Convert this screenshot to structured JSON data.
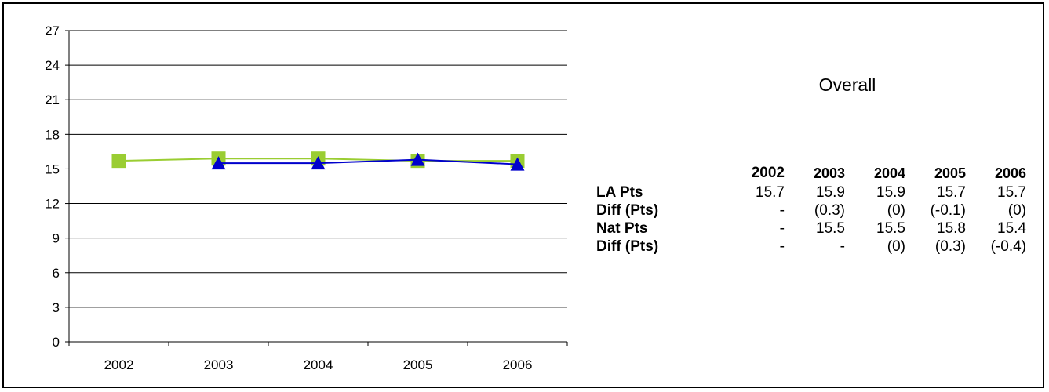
{
  "chart_data": {
    "type": "line",
    "categories": [
      "2002",
      "2003",
      "2004",
      "2005",
      "2006"
    ],
    "ylim": [
      0,
      27
    ],
    "yticks": [
      "0",
      "3",
      "6",
      "9",
      "12",
      "15",
      "18",
      "21",
      "24",
      "27"
    ],
    "grid": true,
    "series": [
      {
        "name": "LA Pts",
        "values": [
          15.7,
          15.9,
          15.9,
          15.7,
          15.7
        ],
        "color": "#9ACD32",
        "marker": "square"
      },
      {
        "name": "Nat Pts",
        "values": [
          null,
          15.5,
          15.5,
          15.8,
          15.4
        ],
        "color": "#0000CC",
        "marker": "triangle"
      }
    ]
  },
  "panel": {
    "title": "Overall",
    "columns": [
      "2002",
      "2003",
      "2004",
      "2005",
      "2006"
    ],
    "rows": [
      {
        "label": "LA Pts",
        "values": [
          "15.7",
          "15.9",
          "15.9",
          "15.7",
          "15.7"
        ]
      },
      {
        "label": "Diff (Pts)",
        "values": [
          "-",
          "(0.3)",
          "(0)",
          "(-0.1)",
          "(0)"
        ]
      },
      {
        "label": "Nat Pts",
        "values": [
          "-",
          "15.5",
          "15.5",
          "15.8",
          "15.4"
        ]
      },
      {
        "label": "Diff (Pts)",
        "values": [
          "-",
          "-",
          "(0)",
          "(0.3)",
          "(-0.4)"
        ]
      }
    ]
  }
}
